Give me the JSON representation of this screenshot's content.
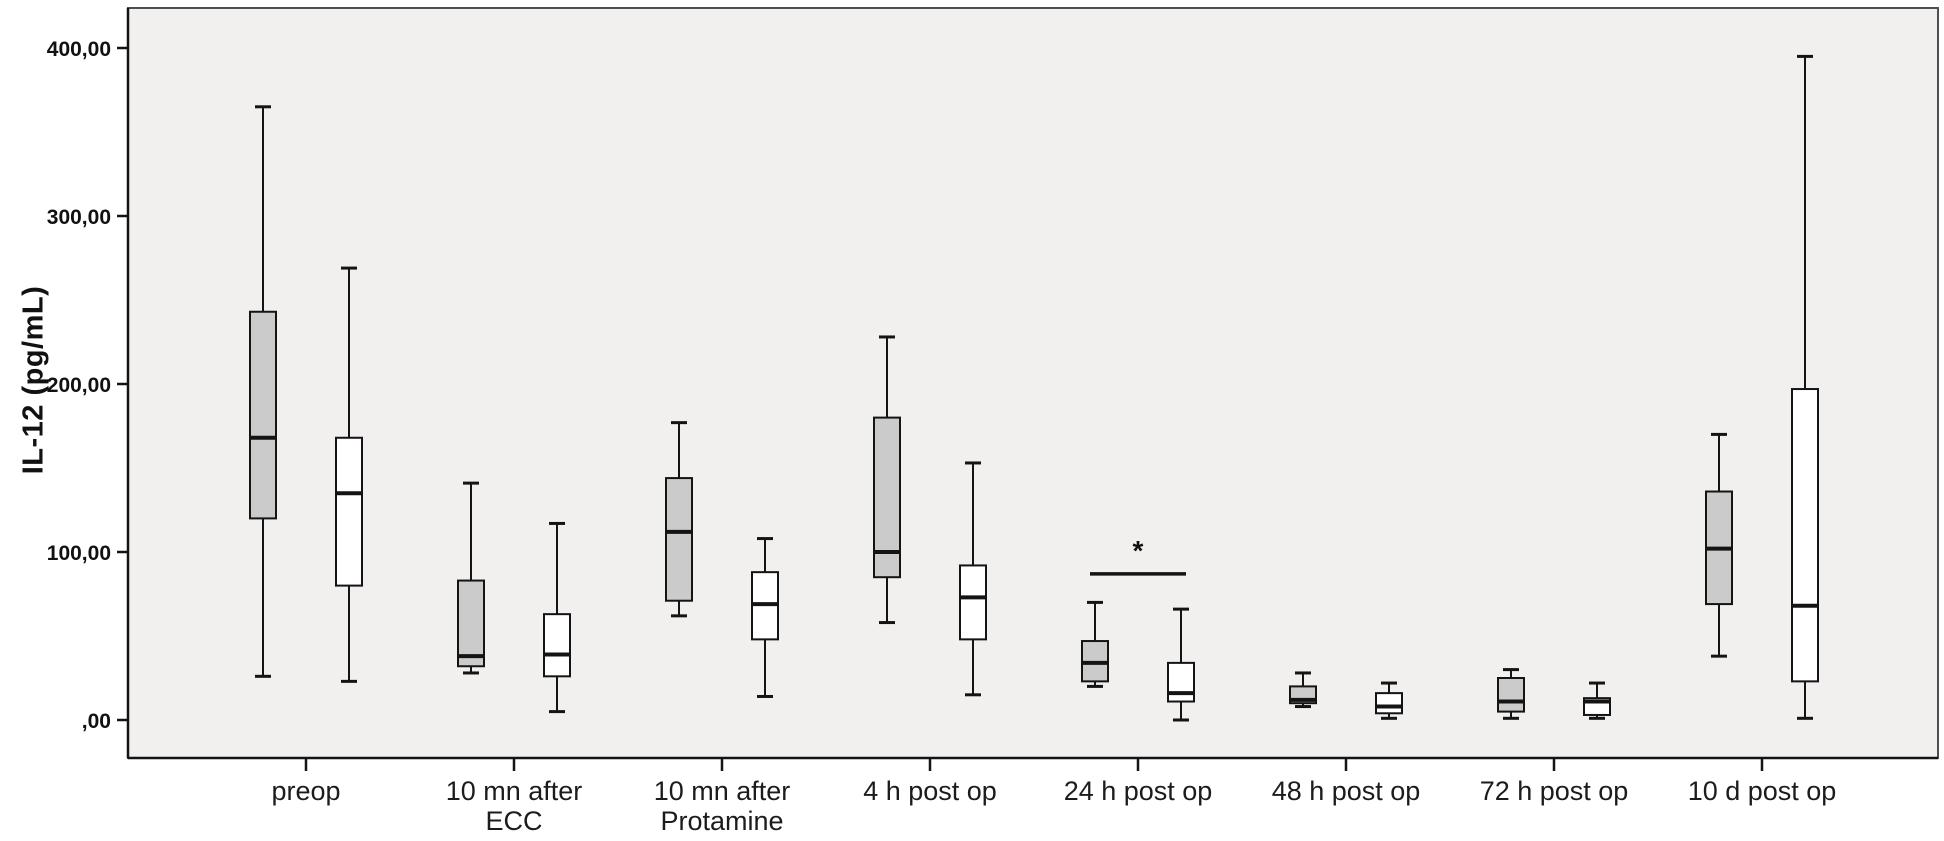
{
  "figure": {
    "kind": "clustered-boxplot",
    "background": "#ffffff"
  },
  "y_axis": {
    "title": "IL-12 (pg/mL)",
    "ticks": [
      {
        "value": 400,
        "label": "400,00"
      },
      {
        "value": 300,
        "label": "300,00"
      },
      {
        "value": 200,
        "label": "200,00"
      },
      {
        "value": 100,
        "label": "100,00"
      },
      {
        "value": 0,
        "label": ",00"
      }
    ]
  },
  "colors": {
    "plot_background": "#f1f0ee",
    "frame": "#4f4f4f",
    "line": "#141414",
    "box_gray_fill": "#cbcbcb",
    "box_white_fill": "#ffffff"
  },
  "chart_data": {
    "type": "boxplot",
    "title": "",
    "xlabel": "",
    "ylabel": "IL-12 (pg/mL)",
    "ylim": [
      0,
      400
    ],
    "grid": false,
    "legend": "none",
    "categories": [
      "preop",
      "10 mn after\nECC",
      "10 mn after\nProtamine",
      "4 h post op",
      "24 h post op",
      "48 h post op",
      "72 h post op",
      "10 d post op"
    ],
    "series": [
      {
        "name": "group-1-gray",
        "fill": "#cbcbcb",
        "boxes": [
          {
            "min": 26,
            "q1": 120,
            "median": 168,
            "q3": 243,
            "max": 365
          },
          {
            "min": 28,
            "q1": 32,
            "median": 38,
            "q3": 83,
            "max": 141
          },
          {
            "min": 62,
            "q1": 71,
            "median": 112,
            "q3": 144,
            "max": 177
          },
          {
            "min": 58,
            "q1": 85,
            "median": 100,
            "q3": 180,
            "max": 228
          },
          {
            "min": 20,
            "q1": 23,
            "median": 34,
            "q3": 47,
            "max": 70
          },
          {
            "min": 8,
            "q1": 10,
            "median": 12,
            "q3": 20,
            "max": 28
          },
          {
            "min": 1,
            "q1": 5,
            "median": 11,
            "q3": 25,
            "max": 30
          },
          {
            "min": 38,
            "q1": 69,
            "median": 102,
            "q3": 136,
            "max": 170
          }
        ]
      },
      {
        "name": "group-2-white",
        "fill": "#ffffff",
        "boxes": [
          {
            "min": 23,
            "q1": 80,
            "median": 135,
            "q3": 168,
            "max": 269
          },
          {
            "min": 5,
            "q1": 26,
            "median": 39,
            "q3": 63,
            "max": 117
          },
          {
            "min": 14,
            "q1": 48,
            "median": 69,
            "q3": 88,
            "max": 108
          },
          {
            "min": 15,
            "q1": 48,
            "median": 73,
            "q3": 92,
            "max": 153
          },
          {
            "min": 0,
            "q1": 11,
            "median": 16,
            "q3": 34,
            "max": 66
          },
          {
            "min": 1,
            "q1": 4,
            "median": 8,
            "q3": 16,
            "max": 22
          },
          {
            "min": 1,
            "q1": 3,
            "median": 11,
            "q3": 13,
            "max": 22
          },
          {
            "min": 1,
            "q1": 23,
            "median": 68,
            "q3": 197,
            "max": 395
          }
        ]
      }
    ],
    "annotations": [
      {
        "type": "significance-bracket",
        "category_index": 4,
        "symbol": "*",
        "bar_value": 87,
        "symbol_value": 100
      }
    ]
  }
}
